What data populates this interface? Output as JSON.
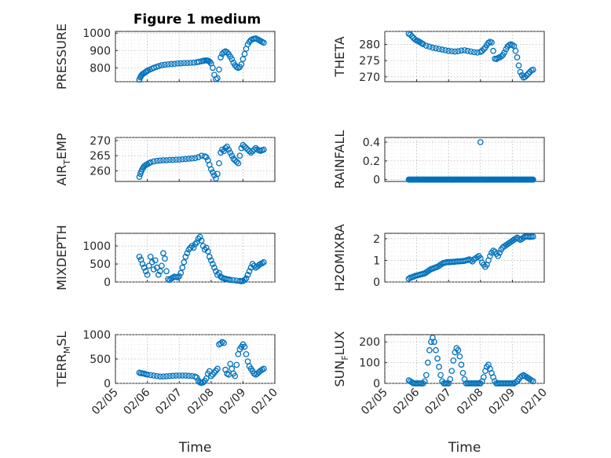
{
  "figure": {
    "title": "Figure 1 medium",
    "marker_color": "#0072BD"
  },
  "chart_data": [
    {
      "type": "scatter",
      "ylabel_main": "PRESSURE",
      "ylabel_sub": "",
      "ylim": [
        720,
        1010
      ],
      "yticks": [
        {
          "v": 800,
          "label": "800"
        },
        {
          "v": 900,
          "label": "900"
        },
        {
          "v": 1000,
          "label": "1000"
        }
      ],
      "x": [
        5.75,
        5.78,
        5.8,
        5.83,
        5.86,
        5.9,
        5.94,
        5.98,
        6.02,
        6.08,
        6.14,
        6.2,
        6.28,
        6.36,
        6.45,
        6.55,
        6.65,
        6.75,
        6.85,
        6.95,
        7.05,
        7.15,
        7.25,
        7.35,
        7.45,
        7.55,
        7.62,
        7.7,
        7.75,
        7.8,
        7.85,
        7.88,
        7.92,
        7.96,
        8.0,
        8.05,
        8.1,
        8.15,
        8.2,
        8.25,
        8.3,
        8.35,
        8.4,
        8.45,
        8.5,
        8.55,
        8.6,
        8.65,
        8.7,
        8.75,
        8.8,
        8.85,
        8.9,
        8.95,
        9.0,
        9.05,
        9.1,
        9.15,
        9.2,
        9.25,
        9.3,
        9.35,
        9.4,
        9.45,
        9.5,
        9.55,
        9.6,
        9.65
      ],
      "y": [
        732,
        745,
        752,
        760,
        765,
        770,
        775,
        780,
        785,
        790,
        795,
        800,
        805,
        810,
        815,
        818,
        820,
        822,
        823,
        825,
        826,
        828,
        828,
        829,
        830,
        832,
        835,
        838,
        840,
        842,
        843,
        842,
        840,
        835,
        825,
        800,
        760,
        735,
        740,
        790,
        860,
        880,
        890,
        895,
        890,
        880,
        865,
        850,
        830,
        815,
        805,
        800,
        805,
        820,
        850,
        880,
        910,
        935,
        950,
        960,
        965,
        968,
        970,
        965,
        960,
        955,
        950,
        945
      ]
    },
    {
      "type": "scatter",
      "ylabel_main": "THETA",
      "ylabel_sub": "",
      "ylim": [
        268.5,
        284
      ],
      "yticks": [
        {
          "v": 270,
          "label": "270"
        },
        {
          "v": 275,
          "label": "275"
        },
        {
          "v": 280,
          "label": "280"
        }
      ],
      "x": [
        5.75,
        5.8,
        5.85,
        5.9,
        5.95,
        6.0,
        6.05,
        6.1,
        6.15,
        6.2,
        6.3,
        6.4,
        6.5,
        6.6,
        6.7,
        6.8,
        6.9,
        7.0,
        7.1,
        7.2,
        7.3,
        7.4,
        7.5,
        7.6,
        7.7,
        7.8,
        7.9,
        8.0,
        8.05,
        8.1,
        8.15,
        8.2,
        8.25,
        8.3,
        8.35,
        8.4,
        8.45,
        8.5,
        8.55,
        8.6,
        8.65,
        8.7,
        8.75,
        8.8,
        8.85,
        8.9,
        8.95,
        9.0,
        9.05,
        9.1,
        9.15,
        9.2,
        9.25,
        9.3,
        9.35,
        9.4,
        9.45,
        9.5,
        9.55,
        9.6,
        9.65
      ],
      "y": [
        283.3,
        283.0,
        282.5,
        282.0,
        281.5,
        281.2,
        281.0,
        280.7,
        280.4,
        280.1,
        279.6,
        279.3,
        279.0,
        278.8,
        278.6,
        278.4,
        278.2,
        278.0,
        277.9,
        277.8,
        277.9,
        278.1,
        278.2,
        278.0,
        277.8,
        277.6,
        277.5,
        277.7,
        278.0,
        278.5,
        279.0,
        279.8,
        280.5,
        280.8,
        280.6,
        278.0,
        275.6,
        275.5,
        275.8,
        276.0,
        276.3,
        276.7,
        277.5,
        278.5,
        279.3,
        279.8,
        280.0,
        279.8,
        279.5,
        278.0,
        276.0,
        273.5,
        271.5,
        270.5,
        269.8,
        270.0,
        270.5,
        271.0,
        271.5,
        272.0,
        272.2
      ]
    },
    {
      "type": "scatter",
      "ylabel_main": "AIR",
      "ylabel_sub": "T",
      "ylabel_rest": "EMP",
      "ylim": [
        256.5,
        271
      ],
      "yticks": [
        {
          "v": 260,
          "label": "260"
        },
        {
          "v": 265,
          "label": "265"
        },
        {
          "v": 270,
          "label": "270"
        }
      ],
      "x": [
        5.75,
        5.78,
        5.81,
        5.84,
        5.87,
        5.9,
        5.95,
        6.0,
        6.05,
        6.1,
        6.2,
        6.3,
        6.4,
        6.5,
        6.6,
        6.7,
        6.8,
        6.9,
        7.0,
        7.1,
        7.2,
        7.3,
        7.4,
        7.5,
        7.6,
        7.7,
        7.8,
        7.85,
        7.9,
        7.95,
        8.0,
        8.05,
        8.1,
        8.15,
        8.2,
        8.25,
        8.3,
        8.35,
        8.4,
        8.45,
        8.5,
        8.55,
        8.6,
        8.65,
        8.7,
        8.75,
        8.8,
        8.85,
        8.9,
        8.95,
        9.0,
        9.05,
        9.1,
        9.15,
        9.2,
        9.25,
        9.3,
        9.35,
        9.4,
        9.45,
        9.5,
        9.55,
        9.6,
        9.65
      ],
      "y": [
        258.0,
        259.0,
        259.8,
        260.5,
        261.0,
        261.5,
        261.9,
        262.2,
        262.5,
        262.8,
        263.1,
        263.3,
        263.4,
        263.5,
        263.5,
        263.6,
        263.6,
        263.7,
        263.7,
        263.8,
        263.9,
        264.0,
        264.1,
        264.2,
        264.5,
        265.0,
        264.8,
        264.5,
        263.5,
        262.0,
        260.5,
        259.5,
        258.5,
        257.5,
        259.0,
        262.5,
        266.0,
        267.0,
        266.5,
        267.5,
        268.0,
        267.0,
        266.0,
        265.0,
        264.0,
        263.5,
        263.0,
        262.5,
        265.0,
        267.5,
        268.5,
        268.0,
        267.5,
        267.0,
        266.5,
        266.0,
        266.5,
        267.0,
        267.5,
        267.0,
        266.8,
        266.6,
        266.8,
        267.0
      ]
    },
    {
      "type": "scatter",
      "ylabel_main": "RAINFALL",
      "ylabel_sub": "",
      "ylim": [
        -0.02,
        0.45
      ],
      "yticks": [
        {
          "v": 0,
          "label": "0"
        },
        {
          "v": 0.2,
          "label": "0.2"
        },
        {
          "v": 0.4,
          "label": "0.4"
        }
      ],
      "rain_range": [
        5.75,
        9.65
      ],
      "rain_peak": [
        8.0,
        0.4
      ]
    },
    {
      "type": "scatter",
      "ylabel_main": "MIXDEPTH",
      "ylabel_sub": "",
      "ylim": [
        0,
        1350
      ],
      "yticks": [
        {
          "v": 0,
          "label": "0"
        },
        {
          "v": 500,
          "label": "500"
        },
        {
          "v": 1000,
          "label": "1000"
        }
      ],
      "x": [
        5.75,
        5.8,
        5.85,
        5.9,
        5.95,
        6.0,
        6.05,
        6.1,
        6.15,
        6.2,
        6.25,
        6.3,
        6.35,
        6.4,
        6.45,
        6.5,
        6.55,
        6.6,
        6.65,
        6.7,
        6.75,
        6.8,
        6.85,
        6.9,
        6.95,
        7.0,
        7.05,
        7.1,
        7.15,
        7.2,
        7.25,
        7.3,
        7.35,
        7.4,
        7.45,
        7.5,
        7.55,
        7.6,
        7.65,
        7.7,
        7.75,
        7.8,
        7.85,
        7.9,
        7.95,
        8.0,
        8.05,
        8.1,
        8.15,
        8.2,
        8.25,
        8.3,
        8.35,
        8.4,
        8.45,
        8.5,
        8.55,
        8.6,
        8.7,
        8.8,
        8.9,
        8.95,
        9.0,
        9.05,
        9.1,
        9.15,
        9.2,
        9.25,
        9.3,
        9.35,
        9.4,
        9.45,
        9.5,
        9.55,
        9.6,
        9.65
      ],
      "y": [
        700,
        620,
        500,
        400,
        300,
        200,
        450,
        700,
        550,
        350,
        600,
        400,
        200,
        300,
        450,
        800,
        650,
        300,
        80,
        60,
        100,
        120,
        150,
        140,
        130,
        160,
        250,
        400,
        550,
        700,
        800,
        900,
        950,
        1000,
        950,
        1050,
        1100,
        1200,
        1250,
        1150,
        1000,
        900,
        950,
        850,
        700,
        600,
        500,
        400,
        300,
        200,
        250,
        150,
        120,
        100,
        90,
        80,
        70,
        60,
        50,
        40,
        30,
        20,
        30,
        60,
        100,
        200,
        300,
        400,
        500,
        450,
        400,
        430,
        470,
        500,
        520,
        550
      ]
    },
    {
      "type": "scatter",
      "ylabel_main": "H2OMIXRA",
      "ylabel_sub": "",
      "ylim": [
        0,
        2.25
      ],
      "yticks": [
        {
          "v": 0,
          "label": "0"
        },
        {
          "v": 1,
          "label": "1"
        },
        {
          "v": 2,
          "label": "2"
        }
      ],
      "x": [
        5.75,
        5.8,
        5.85,
        5.9,
        5.95,
        6.0,
        6.05,
        6.1,
        6.15,
        6.2,
        6.25,
        6.3,
        6.35,
        6.4,
        6.45,
        6.5,
        6.55,
        6.6,
        6.65,
        6.7,
        6.75,
        6.8,
        6.85,
        6.9,
        6.95,
        7.0,
        7.05,
        7.1,
        7.15,
        7.2,
        7.25,
        7.3,
        7.35,
        7.4,
        7.45,
        7.5,
        7.55,
        7.6,
        7.65,
        7.7,
        7.75,
        7.8,
        7.85,
        7.9,
        7.95,
        8.0,
        8.05,
        8.1,
        8.15,
        8.2,
        8.25,
        8.3,
        8.35,
        8.4,
        8.45,
        8.5,
        8.55,
        8.6,
        8.65,
        8.7,
        8.75,
        8.8,
        8.85,
        8.9,
        8.95,
        9.0,
        9.05,
        9.1,
        9.15,
        9.2,
        9.25,
        9.3,
        9.35,
        9.4,
        9.45,
        9.5,
        9.55,
        9.6,
        9.65
      ],
      "y": [
        0.15,
        0.2,
        0.22,
        0.25,
        0.28,
        0.3,
        0.32,
        0.34,
        0.36,
        0.38,
        0.4,
        0.45,
        0.5,
        0.55,
        0.6,
        0.62,
        0.65,
        0.68,
        0.7,
        0.75,
        0.8,
        0.85,
        0.88,
        0.9,
        0.92,
        0.92,
        0.92,
        0.93,
        0.93,
        0.94,
        0.95,
        0.95,
        0.96,
        0.96,
        0.97,
        0.98,
        1.0,
        1.02,
        1.05,
        1.0,
        0.95,
        1.05,
        1.1,
        1.15,
        1.2,
        1.1,
        0.9,
        0.8,
        0.7,
        0.8,
        1.0,
        1.2,
        1.35,
        1.45,
        1.4,
        1.3,
        1.2,
        1.35,
        1.5,
        1.6,
        1.65,
        1.7,
        1.75,
        1.8,
        1.85,
        1.9,
        1.95,
        2.0,
        2.05,
        2.0,
        1.95,
        2.0,
        2.05,
        2.1,
        2.1,
        2.1,
        2.08,
        2.1,
        2.1
      ]
    },
    {
      "type": "scatter",
      "ylabel_main": "TERR",
      "ylabel_sub": "M",
      "ylabel_rest": "SL",
      "ylim": [
        0,
        1000
      ],
      "yticks": [
        {
          "v": 0,
          "label": "0"
        },
        {
          "v": 500,
          "label": "500"
        },
        {
          "v": 1000,
          "label": "1000"
        }
      ],
      "x": [
        5.75,
        5.8,
        5.85,
        5.9,
        5.95,
        6.0,
        6.1,
        6.2,
        6.3,
        6.4,
        6.5,
        6.6,
        6.7,
        6.8,
        6.9,
        7.0,
        7.1,
        7.2,
        7.3,
        7.4,
        7.5,
        7.55,
        7.6,
        7.65,
        7.7,
        7.75,
        7.8,
        7.85,
        7.9,
        7.95,
        8.0,
        8.05,
        8.1,
        8.15,
        8.2,
        8.25,
        8.3,
        8.35,
        8.4,
        8.45,
        8.5,
        8.55,
        8.6,
        8.65,
        8.7,
        8.75,
        8.8,
        8.85,
        8.9,
        8.95,
        9.0,
        9.05,
        9.1,
        9.15,
        9.2,
        9.25,
        9.3,
        9.35,
        9.4,
        9.45,
        9.5,
        9.55,
        9.6,
        9.65
      ],
      "y": [
        220,
        210,
        205,
        200,
        190,
        180,
        170,
        160,
        150,
        140,
        140,
        145,
        150,
        155,
        160,
        160,
        160,
        160,
        155,
        150,
        140,
        120,
        60,
        20,
        10,
        20,
        50,
        100,
        200,
        250,
        150,
        180,
        220,
        260,
        300,
        800,
        820,
        850,
        830,
        280,
        200,
        180,
        400,
        300,
        200,
        150,
        380,
        600,
        700,
        750,
        800,
        750,
        600,
        450,
        350,
        300,
        250,
        200,
        180,
        200,
        230,
        260,
        280,
        300
      ]
    },
    {
      "type": "scatter",
      "ylabel_main": "SUN",
      "ylabel_sub": "F",
      "ylabel_rest": "LUX",
      "ylim": [
        0,
        235
      ],
      "yticks": [
        {
          "v": 0,
          "label": "0"
        },
        {
          "v": 100,
          "label": "100"
        },
        {
          "v": 200,
          "label": "200"
        }
      ],
      "x": [
        5.75,
        5.8,
        5.85,
        5.9,
        5.95,
        6.0,
        6.05,
        6.1,
        6.15,
        6.2,
        6.25,
        6.3,
        6.35,
        6.4,
        6.45,
        6.5,
        6.55,
        6.6,
        6.65,
        6.7,
        6.75,
        6.8,
        6.85,
        6.9,
        6.95,
        7.0,
        7.05,
        7.1,
        7.15,
        7.2,
        7.25,
        7.3,
        7.35,
        7.4,
        7.45,
        7.5,
        7.55,
        7.6,
        7.65,
        7.7,
        7.75,
        7.8,
        7.85,
        7.9,
        7.95,
        8.0,
        8.05,
        8.1,
        8.15,
        8.2,
        8.25,
        8.3,
        8.35,
        8.4,
        8.45,
        8.5,
        8.55,
        8.6,
        8.65,
        8.7,
        8.75,
        8.8,
        8.85,
        8.9,
        8.95,
        9.0,
        9.05,
        9.1,
        9.15,
        9.2,
        9.25,
        9.3,
        9.35,
        9.4,
        9.45,
        9.5,
        9.55,
        9.6,
        9.65
      ],
      "y": [
        15,
        10,
        5,
        0,
        0,
        0,
        0,
        0,
        0,
        0,
        10,
        40,
        100,
        160,
        200,
        220,
        200,
        160,
        120,
        80,
        40,
        10,
        0,
        0,
        0,
        0,
        20,
        60,
        110,
        150,
        170,
        160,
        130,
        90,
        50,
        20,
        0,
        0,
        0,
        0,
        0,
        0,
        0,
        0,
        0,
        0,
        10,
        30,
        60,
        80,
        90,
        70,
        50,
        30,
        10,
        0,
        0,
        0,
        0,
        0,
        0,
        0,
        0,
        0,
        0,
        0,
        0,
        5,
        10,
        20,
        30,
        35,
        40,
        35,
        30,
        25,
        20,
        15,
        10
      ]
    }
  ],
  "xaxis": {
    "xlim": [
      5,
      10
    ],
    "ticks": [
      {
        "v": 5,
        "label": "02/05"
      },
      {
        "v": 6,
        "label": "02/06"
      },
      {
        "v": 7,
        "label": "02/07"
      },
      {
        "v": 8,
        "label": "02/08"
      },
      {
        "v": 9,
        "label": "02/09"
      },
      {
        "v": 10,
        "label": "02/10"
      }
    ],
    "label": "Time"
  }
}
